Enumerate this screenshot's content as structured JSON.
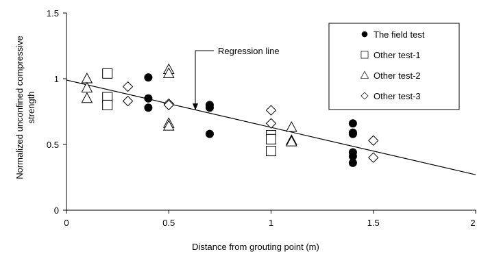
{
  "chart_data": {
    "type": "scatter",
    "xlabel": "Distance from grouting point (m)",
    "ylabel": "Normalized unconfined compressive strength",
    "xlim": [
      0,
      2
    ],
    "ylim": [
      0,
      1.5
    ],
    "x_ticks": [
      0,
      0.5,
      1,
      1.5,
      2
    ],
    "x_tick_labels": [
      "0",
      "0.5",
      "1",
      "1.5",
      "2"
    ],
    "y_ticks": [
      0,
      0.5,
      1,
      1.5
    ],
    "y_tick_labels": [
      "0",
      "0.5",
      "1",
      "1.5"
    ],
    "grid": false,
    "legend_position": "top-right",
    "series": [
      {
        "name": "The field test",
        "marker": "filled-circle",
        "points": [
          {
            "x": 0.4,
            "y": 1.01
          },
          {
            "x": 0.4,
            "y": 0.85
          },
          {
            "x": 0.4,
            "y": 0.78
          },
          {
            "x": 0.7,
            "y": 0.8
          },
          {
            "x": 0.7,
            "y": 0.78
          },
          {
            "x": 0.7,
            "y": 0.58
          },
          {
            "x": 1.4,
            "y": 0.66
          },
          {
            "x": 1.4,
            "y": 0.59
          },
          {
            "x": 1.4,
            "y": 0.58
          },
          {
            "x": 1.4,
            "y": 0.44
          },
          {
            "x": 1.4,
            "y": 0.41
          },
          {
            "x": 1.4,
            "y": 0.36
          }
        ]
      },
      {
        "name": "Other test-1",
        "marker": "open-square",
        "points": [
          {
            "x": 0.2,
            "y": 1.04
          },
          {
            "x": 0.2,
            "y": 0.86
          },
          {
            "x": 0.2,
            "y": 0.8
          },
          {
            "x": 1.0,
            "y": 0.57
          },
          {
            "x": 1.0,
            "y": 0.54
          },
          {
            "x": 1.0,
            "y": 0.45
          }
        ]
      },
      {
        "name": "Other test-2",
        "marker": "open-triangle",
        "points": [
          {
            "x": 0.1,
            "y": 1.0
          },
          {
            "x": 0.1,
            "y": 0.93
          },
          {
            "x": 0.1,
            "y": 0.85
          },
          {
            "x": 0.5,
            "y": 1.07
          },
          {
            "x": 0.5,
            "y": 1.04
          },
          {
            "x": 0.5,
            "y": 0.66
          },
          {
            "x": 0.5,
            "y": 0.64
          },
          {
            "x": 1.1,
            "y": 0.63
          },
          {
            "x": 1.1,
            "y": 0.53
          },
          {
            "x": 1.1,
            "y": 0.52
          }
        ]
      },
      {
        "name": "Other test-3",
        "marker": "open-diamond",
        "points": [
          {
            "x": 0.3,
            "y": 0.94
          },
          {
            "x": 0.3,
            "y": 0.83
          },
          {
            "x": 0.5,
            "y": 0.81
          },
          {
            "x": 0.5,
            "y": 0.8
          },
          {
            "x": 1.0,
            "y": 0.76
          },
          {
            "x": 1.0,
            "y": 0.66
          },
          {
            "x": 1.5,
            "y": 0.53
          },
          {
            "x": 1.5,
            "y": 0.4
          }
        ]
      }
    ],
    "regression_line": {
      "x": [
        0,
        2
      ],
      "y": [
        0.99,
        0.27
      ]
    },
    "annotations": [
      {
        "text": "Regression line",
        "arrow_target": {
          "x": 0.63,
          "y": 0.76
        },
        "text_anchor": {
          "x": 0.7,
          "y": 1.22
        }
      }
    ]
  }
}
